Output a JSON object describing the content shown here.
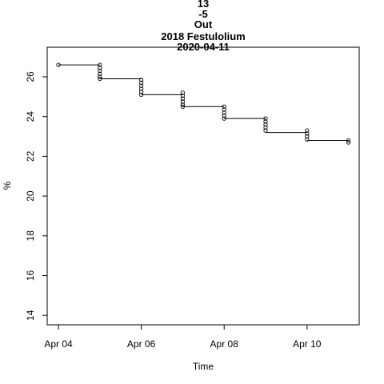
{
  "chart_data": {
    "type": "scatter",
    "title_lines": [
      "13",
      "-5",
      "Out",
      "2018 Festulolium",
      "2020-04-11"
    ],
    "xlabel": "Time",
    "ylabel": "%",
    "x_ticks": [
      {
        "day": 0,
        "label": "Apr 04"
      },
      {
        "day": 2,
        "label": "Apr 06"
      },
      {
        "day": 4,
        "label": "Apr 08"
      },
      {
        "day": 6,
        "label": "Apr 10"
      }
    ],
    "y_ticks": [
      14,
      16,
      18,
      20,
      22,
      24,
      26
    ],
    "xlim": [
      "Apr 04",
      "Apr 11"
    ],
    "ylim": [
      13.6,
      27.3
    ],
    "grid": false,
    "legend": "none",
    "points": [
      {
        "x": "Apr 04",
        "y": 26.6
      },
      {
        "x": "Apr 05",
        "y": 26.6
      },
      {
        "x": "Apr 05",
        "y": 26.45
      },
      {
        "x": "Apr 05",
        "y": 26.3
      },
      {
        "x": "Apr 05",
        "y": 26.15
      },
      {
        "x": "Apr 05",
        "y": 26.0
      },
      {
        "x": "Apr 05",
        "y": 25.9
      },
      {
        "x": "Apr 06",
        "y": 25.85
      },
      {
        "x": "Apr 06",
        "y": 25.7
      },
      {
        "x": "Apr 06",
        "y": 25.55
      },
      {
        "x": "Apr 06",
        "y": 25.4
      },
      {
        "x": "Apr 06",
        "y": 25.25
      },
      {
        "x": "Apr 06",
        "y": 25.1
      },
      {
        "x": "Apr 07",
        "y": 25.2
      },
      {
        "x": "Apr 07",
        "y": 25.05
      },
      {
        "x": "Apr 07",
        "y": 24.9
      },
      {
        "x": "Apr 07",
        "y": 24.75
      },
      {
        "x": "Apr 07",
        "y": 24.6
      },
      {
        "x": "Apr 07",
        "y": 24.5
      },
      {
        "x": "Apr 08",
        "y": 24.5
      },
      {
        "x": "Apr 08",
        "y": 24.35
      },
      {
        "x": "Apr 08",
        "y": 24.2
      },
      {
        "x": "Apr 08",
        "y": 24.05
      },
      {
        "x": "Apr 08",
        "y": 23.9
      },
      {
        "x": "Apr 09",
        "y": 23.9
      },
      {
        "x": "Apr 09",
        "y": 23.75
      },
      {
        "x": "Apr 09",
        "y": 23.6
      },
      {
        "x": "Apr 09",
        "y": 23.45
      },
      {
        "x": "Apr 09",
        "y": 23.3
      },
      {
        "x": "Apr 10",
        "y": 23.3
      },
      {
        "x": "Apr 10",
        "y": 23.15
      },
      {
        "x": "Apr 10",
        "y": 23.0
      },
      {
        "x": "Apr 10",
        "y": 22.85
      },
      {
        "x": "Apr 11",
        "y": 22.8
      },
      {
        "x": "Apr 11",
        "y": 22.7
      }
    ],
    "segments": [
      {
        "from": "Apr 04",
        "to": "Apr 05",
        "y": 26.6
      },
      {
        "from": "Apr 05",
        "to": "Apr 06",
        "y": 25.9
      },
      {
        "from": "Apr 06",
        "to": "Apr 07",
        "y": 25.1
      },
      {
        "from": "Apr 07",
        "to": "Apr 08",
        "y": 24.5
      },
      {
        "from": "Apr 08",
        "to": "Apr 09",
        "y": 23.9
      },
      {
        "from": "Apr 09",
        "to": "Apr 10",
        "y": 23.2
      },
      {
        "from": "Apr 10",
        "to": "Apr 11",
        "y": 22.8
      }
    ]
  }
}
